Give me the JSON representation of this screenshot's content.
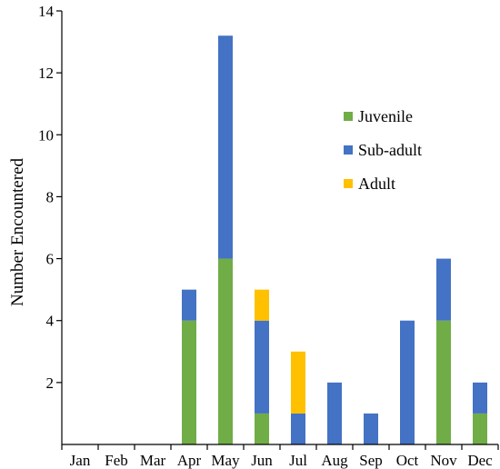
{
  "chart_data": {
    "type": "bar",
    "stacked": true,
    "title": "",
    "xlabel": "",
    "ylabel": "Number Encountered",
    "ylim": [
      0,
      14
    ],
    "yticks": [
      2,
      4,
      6,
      8,
      10,
      12,
      14
    ],
    "grid": false,
    "legend_position": "right",
    "categories": [
      "Jan",
      "Feb",
      "Mar",
      "Apr",
      "May",
      "Jun",
      "Jul",
      "Aug",
      "Sep",
      "Oct",
      "Nov",
      "Dec"
    ],
    "series": [
      {
        "name": "Juvenile",
        "color": "#70ad47",
        "values": [
          0,
          0,
          0,
          4,
          6,
          1,
          0,
          0,
          0,
          0,
          4,
          1
        ]
      },
      {
        "name": "Sub-adult",
        "color": "#4472c4",
        "values": [
          0,
          0,
          0,
          1,
          7.2,
          3,
          1,
          2,
          1,
          4,
          2,
          1
        ]
      },
      {
        "name": "Adult",
        "color": "#ffc000",
        "values": [
          0,
          0,
          0,
          0,
          0,
          1,
          2,
          0,
          0,
          0,
          0,
          0
        ]
      }
    ]
  }
}
